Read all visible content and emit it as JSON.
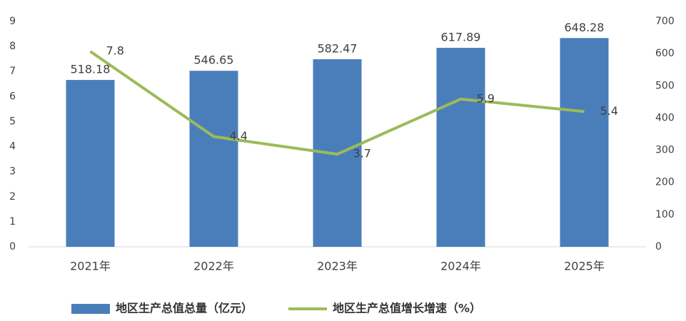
{
  "chart_data": {
    "type": "bar",
    "categories": [
      "2021年",
      "2022年",
      "2023年",
      "2024年",
      "2025年"
    ],
    "series": [
      {
        "name": "地区生产总值总量（亿元）",
        "type": "bar",
        "color": "#4a7ebb",
        "axis": "y2",
        "values": [
          518.18,
          546.65,
          582.47,
          617.89,
          648.28
        ]
      },
      {
        "name": "地区生产总值增长增速（%）",
        "type": "line",
        "color": "#9bbb59",
        "axis": "y",
        "values": [
          7.8,
          4.4,
          3.7,
          5.9,
          5.4
        ]
      }
    ],
    "ylim": [
      0,
      9
    ],
    "yticks": [
      0,
      1,
      2,
      3,
      4,
      5,
      6,
      7,
      8,
      9
    ],
    "y2lim": [
      0,
      700
    ],
    "y2ticks": [
      0,
      100,
      200,
      300,
      400,
      500,
      600,
      700
    ],
    "legend": "bottom"
  }
}
